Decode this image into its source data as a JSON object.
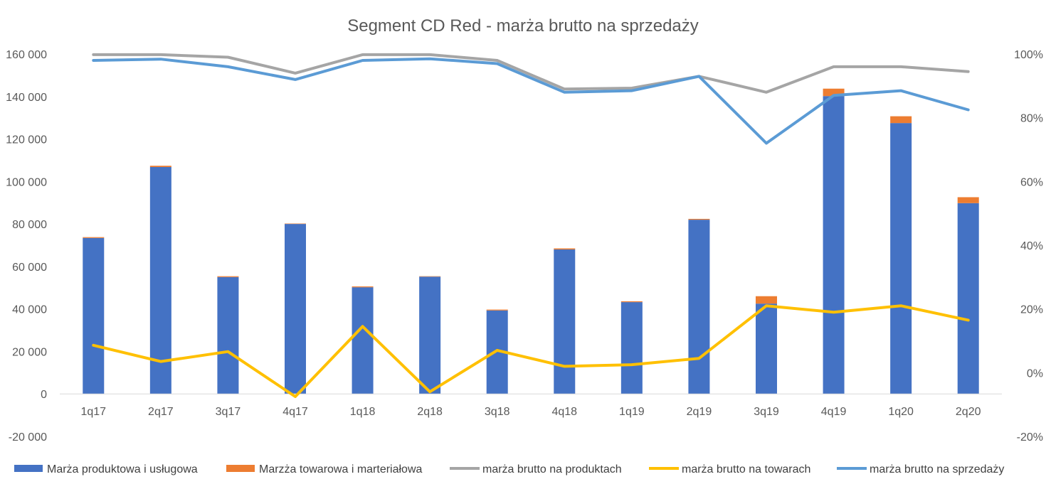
{
  "chart_data": {
    "type": "bar",
    "title": "Segment CD Red - marża brutto na sprzedaży",
    "categories": [
      "1q17",
      "2q17",
      "3q17",
      "4q17",
      "1q18",
      "2q18",
      "3q18",
      "4q18",
      "1q19",
      "2q19",
      "3q19",
      "4q19",
      "1q20",
      "2q20"
    ],
    "left_axis": {
      "ylim": [
        -20000,
        160000
      ],
      "ticks": [
        -20000,
        0,
        20000,
        40000,
        60000,
        80000,
        100000,
        120000,
        140000,
        160000
      ],
      "tick_labels": [
        "-20 000",
        "0",
        "20 000",
        "40 000",
        "60 000",
        "80 000",
        "100 000",
        "120 000",
        "140 000",
        "160 000"
      ]
    },
    "right_axis": {
      "ylim": [
        -0.2,
        1.0
      ],
      "ticks": [
        -0.2,
        0.0,
        0.2,
        0.4,
        0.6,
        0.8,
        1.0
      ],
      "tick_labels": [
        "-20%",
        "0%",
        "20%",
        "40%",
        "60%",
        "80%",
        "100%"
      ]
    },
    "bar_series": [
      {
        "name": "Marża produktowa i usługowa",
        "color": "#4472C4",
        "values": [
          73400,
          106800,
          55000,
          80000,
          50200,
          55200,
          39300,
          68000,
          43200,
          82000,
          42500,
          140200,
          127500,
          89800
        ]
      },
      {
        "name": "Marzża towarowa i marteriałowa",
        "color": "#ED7D31",
        "values": [
          400,
          600,
          400,
          200,
          400,
          200,
          400,
          500,
          400,
          400,
          3500,
          3500,
          3200,
          2800
        ]
      }
    ],
    "line_series": [
      {
        "name": "marża brutto na produktach",
        "color": "#A5A5A5",
        "axis": "right",
        "values": [
          0.998,
          0.998,
          0.99,
          0.94,
          0.998,
          0.998,
          0.98,
          0.89,
          0.893,
          0.93,
          0.88,
          0.96,
          0.96,
          0.945
        ]
      },
      {
        "name": "marża brutto na towarach",
        "color": "#FFC000",
        "axis": "right",
        "values": [
          0.086,
          0.035,
          0.066,
          -0.075,
          0.145,
          -0.06,
          0.07,
          0.02,
          0.025,
          0.045,
          0.21,
          0.19,
          0.21,
          0.165
        ]
      },
      {
        "name": "marża brutto na sprzedaży",
        "color": "#5B9BD5",
        "axis": "right",
        "values": [
          0.98,
          0.984,
          0.96,
          0.92,
          0.98,
          0.985,
          0.97,
          0.88,
          0.885,
          0.93,
          0.72,
          0.87,
          0.885,
          0.825
        ]
      }
    ],
    "legend_position": "bottom",
    "grid": false
  }
}
